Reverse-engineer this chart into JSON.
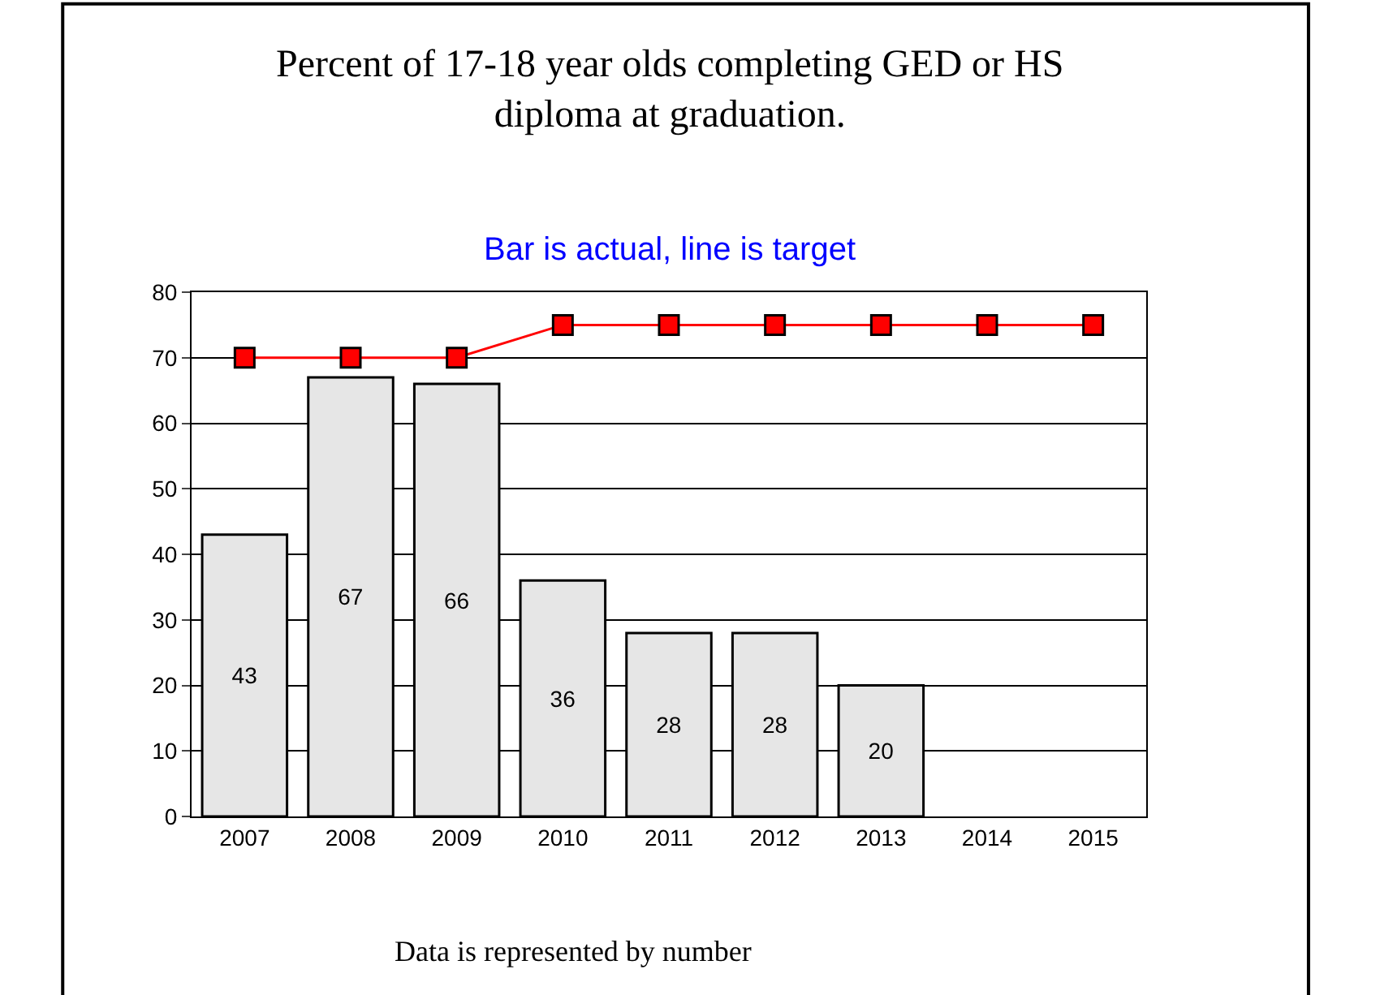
{
  "chart_data": {
    "type": "bar",
    "title": "Percent of 17-18 year olds completing GED or HS diploma at graduation.",
    "subtitle": "Bar is actual, line is target",
    "categories": [
      "2007",
      "2008",
      "2009",
      "2010",
      "2011",
      "2012",
      "2013",
      "2014",
      "2015"
    ],
    "series": [
      {
        "color": "#e6e6e6",
        "values": [
          43,
          67,
          66,
          36,
          28,
          28,
          20,
          null,
          null
        ],
        "value_labels": [
          "43",
          "67",
          "66",
          "36",
          "28",
          "28",
          "20",
          null,
          null
        ]
      },
      {
        "type": "line",
        "color": "#ff0000",
        "values": [
          70,
          70,
          70,
          75,
          75,
          75,
          75,
          75,
          75
        ],
        "marker": "square",
        "line_style": "solid"
      }
    ],
    "ylim": [
      0,
      80
    ],
    "yticks": [
      0,
      10,
      20,
      30,
      40,
      50,
      60,
      70,
      80
    ],
    "grid": "y",
    "annotations": [
      "Data is represented by number"
    ]
  }
}
